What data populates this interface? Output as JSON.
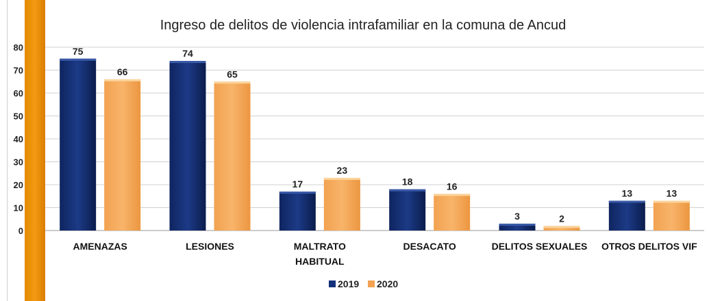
{
  "chart_data": {
    "type": "bar",
    "title": "Ingreso de delitos de violencia intrafamiliar en la comuna de Ancud",
    "categories": [
      [
        "AMENAZAS"
      ],
      [
        "LESIONES"
      ],
      [
        "MALTRATO",
        "HABITUAL"
      ],
      [
        "DESACATO"
      ],
      [
        "DELITOS SEXUALES"
      ],
      [
        "OTROS DELITOS VIF"
      ]
    ],
    "series": [
      {
        "name": "2019",
        "values": [
          75,
          74,
          17,
          18,
          3,
          13
        ]
      },
      {
        "name": "2020",
        "values": [
          66,
          65,
          23,
          16,
          2,
          13
        ]
      }
    ],
    "yticks": [
      "0",
      "10",
      "20",
      "30",
      "40",
      "50",
      "60",
      "70",
      "80"
    ],
    "ylim": [
      0,
      80
    ],
    "grid": true,
    "legend_position": "bottom"
  }
}
